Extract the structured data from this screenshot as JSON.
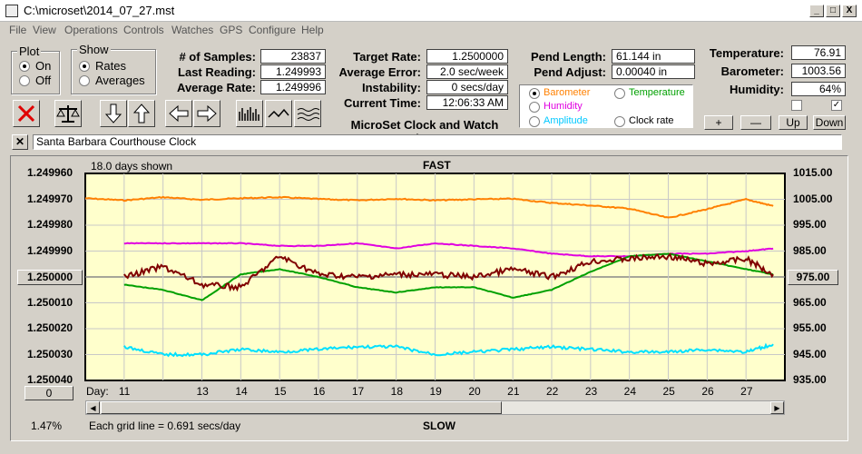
{
  "window": {
    "title": "C:\\microset\\2014_07_27.mst",
    "minimize": "_",
    "maximize": "□",
    "close": "X"
  },
  "menu": [
    "File",
    "View",
    "Operations",
    "Controls",
    "Watches",
    "GPS",
    "Configure",
    "Help"
  ],
  "plot_group": {
    "title": "Plot",
    "on": "On",
    "off": "Off",
    "selected": "On"
  },
  "show_group": {
    "title": "Show",
    "rates": "Rates",
    "averages": "Averages",
    "selected": "Rates"
  },
  "stats": {
    "samples_label": "# of Samples:",
    "samples": "23837",
    "last_label": "Last Reading:",
    "last": "1.249993",
    "avg_label": "Average Rate:",
    "avg": "1.249996"
  },
  "timing": {
    "target_label": "Target Rate:",
    "target": "1.2500000",
    "error_label": "Average Error:",
    "error": "2.0 sec/week",
    "instab_label": "Instability:",
    "instab": "0 secs/day",
    "time_label": "Current Time:",
    "time": "12:06:33 AM",
    "app_title": "MicroSet Clock and Watch Timer"
  },
  "pendulum": {
    "length_label": "Pend Length:",
    "length": "61.144 in",
    "adjust_label": "Pend Adjust:",
    "adjust": "0.00040 in"
  },
  "sensors": {
    "temp_label": "Temperature:",
    "temp": "76.91",
    "baro_label": "Barometer:",
    "baro": "1003.56",
    "hum_label": "Humidity:",
    "hum": "64%"
  },
  "overlay": {
    "barometer": "Barometer",
    "temperature": "Temperature",
    "humidity": "Humidity",
    "amplitude": "Amplitude",
    "clockrate": "Clock rate",
    "selected": "Barometer"
  },
  "scale_buttons": {
    "plus": "+",
    "minus": "—",
    "up": "Up",
    "down": "Down"
  },
  "clock_name": "Santa Barbara Courthouse Clock",
  "colors": {
    "barometer": "#ff8000",
    "temperature": "#00a000",
    "humidity": "#e000e0",
    "amplitude": "#00e0ff",
    "rate": "#800000",
    "plot_bg": "#ffffcc"
  },
  "chart_data": {
    "type": "line",
    "days_shown": "18.0 days shown",
    "top_label": "FAST",
    "bottom_label": "SLOW",
    "left_ticks": [
      "1.249960",
      "1.249970",
      "1.249980",
      "1.249990",
      "1.250000",
      "1.250010",
      "1.250020",
      "1.250030",
      "1.250040"
    ],
    "right_ticks": [
      "1015.00",
      "1005.00",
      "995.00",
      "985.00",
      "975.00",
      "965.00",
      "955.00",
      "945.00",
      "935.00"
    ],
    "center_left_btn": "1.250000",
    "center_right_btn": "975.00",
    "x_prefix": "Day:",
    "x_ticks": [
      "11",
      "13",
      "14",
      "15",
      "16",
      "17",
      "18",
      "19",
      "20",
      "21",
      "22",
      "23",
      "24",
      "25",
      "26",
      "27"
    ],
    "xlim": [
      10.0,
      28.0
    ],
    "offset_btn": "0",
    "zoom_pct": "1.47%",
    "grid_note": "Each grid line = 0.691 secs/day",
    "series": [
      {
        "name": "Barometer",
        "color": "#ff8000",
        "x": [
          10.0,
          11,
          12,
          13,
          14,
          15,
          16,
          17,
          18,
          19,
          20,
          21,
          22,
          23,
          24,
          25,
          26,
          27,
          27.7
        ],
        "y": [
          1005.4,
          1004.6,
          1005.8,
          1004.8,
          1005.4,
          1005.8,
          1005.1,
          1004.6,
          1005.2,
          1004.6,
          1005.0,
          1005.2,
          1003.6,
          1002.6,
          1001.4,
          997.8,
          1001.2,
          1005.0,
          1002.4
        ]
      },
      {
        "name": "Humidity",
        "x": [
          11,
          12,
          13,
          14,
          15,
          16,
          17,
          18,
          19,
          20,
          21,
          22,
          23,
          24,
          25,
          26,
          27,
          27.7
        ],
        "y": [
          1.249987,
          1.249987,
          1.249987,
          1.249987,
          1.249988,
          1.249988,
          1.249987,
          1.249989,
          1.249987,
          1.249988,
          1.249989,
          1.249991,
          1.249992,
          1.249992,
          1.249991,
          1.249991,
          1.24999,
          1.249989
        ]
      },
      {
        "name": "Temperature",
        "x": [
          11,
          12,
          13,
          14,
          15,
          16,
          17,
          18,
          19,
          20,
          21,
          22,
          23,
          24,
          25,
          26,
          27,
          27.7
        ],
        "y": [
          1.250003,
          1.250005,
          1.250009,
          1.249999,
          1.249997,
          1.25,
          1.250004,
          1.250006,
          1.250004,
          1.250004,
          1.250008,
          1.250005,
          1.249998,
          1.249992,
          1.249991,
          1.249994,
          1.249997,
          1.249999
        ]
      },
      {
        "name": "Clock rate",
        "x": [
          11,
          12,
          13,
          14,
          15,
          16,
          17,
          18,
          19,
          20,
          21,
          22,
          23,
          24,
          25,
          26,
          27,
          27.7
        ],
        "y": [
          1.25,
          1.249996,
          1.250003,
          1.250004,
          1.249992,
          1.249999,
          1.25,
          1.249999,
          1.249999,
          1.25,
          1.249997,
          1.25,
          1.249994,
          1.249993,
          1.249992,
          1.249995,
          1.249993,
          1.249999
        ]
      },
      {
        "name": "Amplitude",
        "x": [
          11,
          12,
          13,
          14,
          15,
          16,
          17,
          18,
          19,
          20,
          21,
          22,
          23,
          24,
          25,
          26,
          27,
          27.7
        ],
        "y": [
          1.250027,
          1.25003,
          1.25003,
          1.250028,
          1.250029,
          1.250028,
          1.250027,
          1.250027,
          1.25003,
          1.250029,
          1.250028,
          1.250027,
          1.250028,
          1.250029,
          1.250029,
          1.250028,
          1.250029,
          1.250026
        ]
      }
    ]
  }
}
